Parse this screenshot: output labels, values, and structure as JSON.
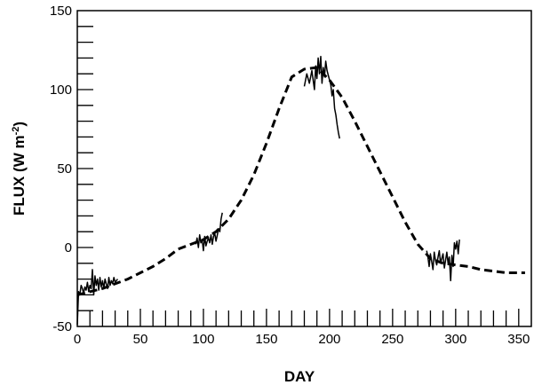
{
  "chart_data": {
    "type": "line",
    "title": "",
    "xlabel": "DAY",
    "ylabel": "FLUX (W m-2)",
    "ylabel_parts": {
      "main": "FLUX (W m",
      "sup": "-2",
      "close": ")"
    },
    "xlim": [
      0,
      360
    ],
    "ylim": [
      -50,
      150
    ],
    "xticks": [
      0,
      50,
      100,
      150,
      200,
      250,
      300,
      350
    ],
    "yticks": [
      -50,
      0,
      50,
      100,
      150
    ],
    "xtick_labels": [
      "0",
      "50",
      "100",
      "150",
      "200",
      "250",
      "300",
      "350"
    ],
    "ytick_labels": [
      "-50",
      "0",
      "50",
      "100",
      "150"
    ],
    "x_minor_step": 10,
    "y_minor_step": 10,
    "grid": false,
    "series": [
      {
        "style": "dashed",
        "color": "#000000",
        "x": [
          0,
          10,
          20,
          30,
          40,
          50,
          60,
          70,
          80,
          90,
          100,
          110,
          120,
          130,
          140,
          150,
          160,
          170,
          180,
          190,
          200,
          210,
          220,
          230,
          240,
          250,
          260,
          270,
          280,
          290,
          300,
          310,
          320,
          330,
          340,
          350,
          355
        ],
        "y": [
          -30,
          -28,
          -26,
          -23,
          -20,
          -16,
          -12,
          -7,
          -1,
          2,
          5,
          10,
          18,
          30,
          46,
          66,
          88,
          108,
          113,
          114,
          106,
          95,
          80,
          64,
          48,
          32,
          16,
          2,
          -7,
          -10,
          -11,
          -12,
          -14,
          -15,
          -16,
          -16,
          -16
        ]
      },
      {
        "style": "solid",
        "color": "#000000",
        "segments": [
          {
            "x": [
              0,
              1,
              2,
              3,
              4,
              5,
              6,
              7,
              8,
              9,
              10,
              11,
              12,
              13,
              14,
              15,
              16,
              17,
              18,
              19,
              20,
              21,
              22,
              23,
              24,
              25,
              26,
              27,
              28,
              29,
              30,
              32
            ],
            "y": [
              -49,
              -28,
              -30,
              -24,
              -26,
              -29,
              -25,
              -27,
              -22,
              -28,
              -24,
              -26,
              -14,
              -30,
              -18,
              -24,
              -20,
              -27,
              -19,
              -25,
              -21,
              -26,
              -20,
              -23,
              -26,
              -19,
              -24,
              -21,
              -23,
              -19,
              -22,
              -20
            ]
          },
          {
            "x": [
              94,
              95,
              96,
              97,
              98,
              99,
              100,
              101,
              102,
              103,
              104,
              105,
              106,
              107,
              108,
              109,
              110,
              111,
              112,
              113,
              114,
              115
            ],
            "y": [
              2,
              6,
              0,
              8,
              3,
              5,
              -2,
              7,
              1,
              4,
              6,
              3,
              8,
              2,
              7,
              9,
              4,
              8,
              12,
              10,
              18,
              22
            ]
          },
          {
            "x": [
              180,
              182,
              184,
              186,
              188,
              189,
              190,
              191,
              192,
              193,
              194,
              195,
              196,
              197,
              198,
              199,
              200,
              201,
              202,
              203,
              204,
              205,
              206,
              207,
              208
            ],
            "y": [
              102,
              110,
              104,
              112,
              100,
              115,
              107,
              120,
              110,
              121,
              104,
              114,
              108,
              118,
              112,
              109,
              106,
              103,
              96,
              100,
              88,
              84,
              78,
              73,
              69
            ]
          },
          {
            "x": [
              277,
              278,
              279,
              280,
              281,
              282,
              283,
              284,
              285,
              286,
              287,
              288,
              289,
              290,
              291,
              292,
              293,
              294,
              295,
              296,
              297,
              298,
              299,
              300,
              301,
              302,
              303
            ],
            "y": [
              -2,
              -6,
              -12,
              -4,
              -9,
              -14,
              -3,
              -8,
              -11,
              -6,
              -2,
              -10,
              -7,
              -4,
              -13,
              -8,
              -3,
              -10,
              -6,
              -21,
              -5,
              -12,
              3,
              -1,
              4,
              -4,
              5
            ]
          }
        ]
      }
    ]
  }
}
